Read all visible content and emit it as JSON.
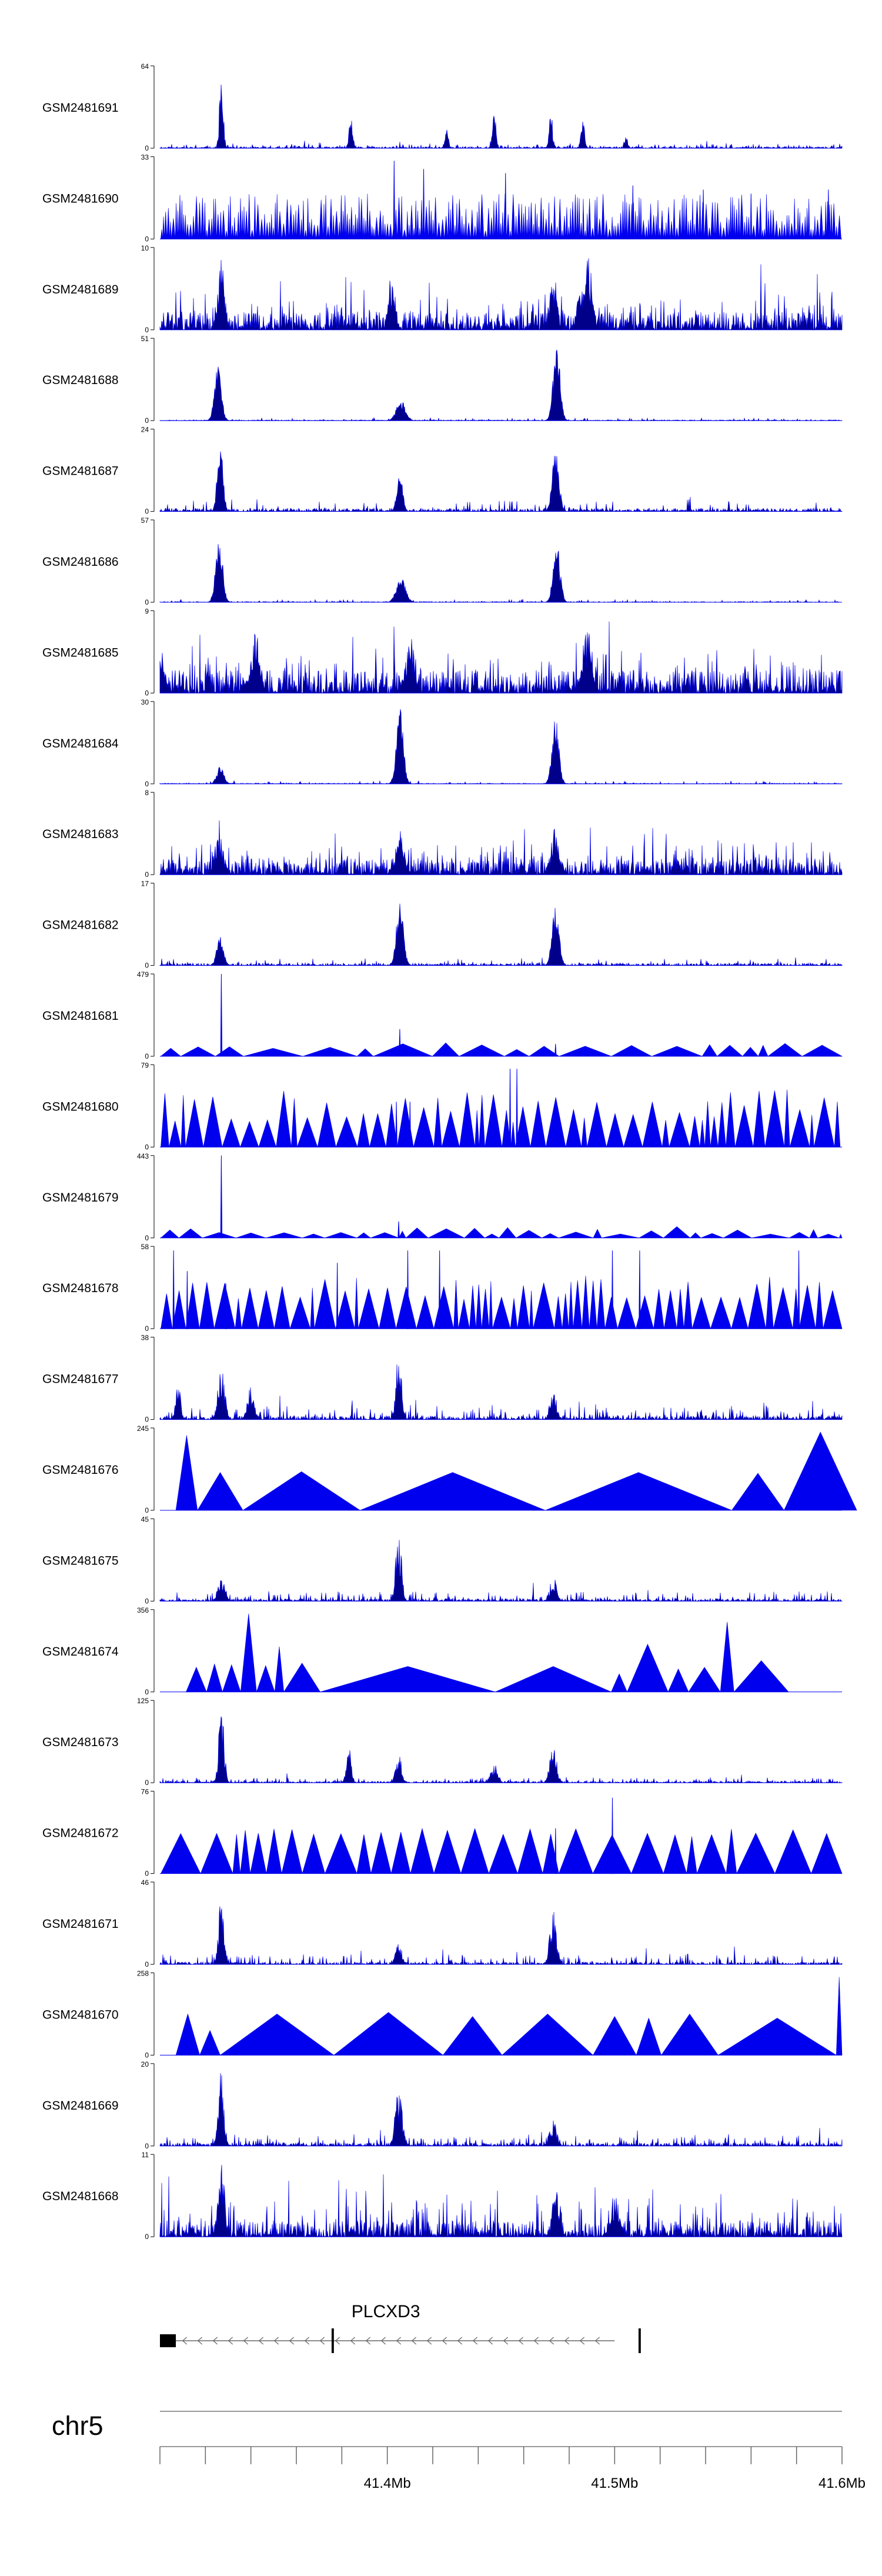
{
  "chart_data": {
    "type": "area",
    "title": "",
    "chromosome": "chr5",
    "xlim_mb": [
      41.3,
      41.6
    ],
    "axis_ticks_mb": [
      41.3,
      41.32,
      41.34,
      41.36,
      41.38,
      41.4,
      41.42,
      41.44,
      41.46,
      41.48,
      41.5,
      41.52,
      41.54,
      41.56,
      41.58,
      41.6
    ],
    "axis_labels": [
      {
        "pos": 41.4,
        "text": "41.4Mb"
      },
      {
        "pos": 41.5,
        "text": "41.5Mb"
      },
      {
        "pos": 41.6,
        "text": "41.6Mb"
      }
    ],
    "colors": {
      "signal": "#0000ee",
      "signal_dark": "#00008b",
      "axis": "#000000",
      "gene": "#000000",
      "gene_line": "#666666",
      "ideogram": "#999999"
    },
    "gene": {
      "name": "PLCXD3",
      "strand": "-",
      "start_mb": 41.3,
      "end_mb": 41.5,
      "exons_mb": [
        [
          41.3,
          41.307
        ],
        [
          41.3755,
          41.3765
        ],
        [
          41.5105,
          41.5115
        ]
      ]
    },
    "tracks": [
      {
        "name": "GSM2481691",
        "ymax": 64,
        "style": "needle",
        "base": 0.02,
        "noise": 0.04,
        "seed": 11,
        "peaks": [
          [
            41.327,
            1.0,
            0.0008
          ],
          [
            41.384,
            0.4,
            0.0008
          ],
          [
            41.426,
            0.25,
            0.0008
          ],
          [
            41.447,
            0.45,
            0.0008
          ],
          [
            41.472,
            0.45,
            0.0008
          ],
          [
            41.486,
            0.35,
            0.0008
          ],
          [
            41.505,
            0.15,
            0.0008
          ]
        ]
      },
      {
        "name": "GSM2481690",
        "ymax": 33,
        "style": "tri",
        "seed": 12,
        "density": 300,
        "hmin": 0.1,
        "hmax": 0.55,
        "spikes": [
          [
            41.403,
            0.95
          ],
          [
            41.416,
            0.85
          ],
          [
            41.452,
            0.8
          ],
          [
            41.508,
            0.65
          ],
          [
            41.539,
            0.6
          ],
          [
            41.56,
            0.55
          ],
          [
            41.594,
            0.6
          ]
        ]
      },
      {
        "name": "GSM2481689",
        "ymax": 10,
        "style": "needle",
        "base": 0.22,
        "noise": 0.3,
        "seed": 13,
        "peaks": [
          [
            41.327,
            0.9,
            0.0015
          ],
          [
            41.402,
            0.6,
            0.0015
          ],
          [
            41.473,
            0.75,
            0.0015
          ],
          [
            41.485,
            0.6,
            0.0015
          ],
          [
            41.488,
            0.95,
            0.002
          ]
        ]
      },
      {
        "name": "GSM2481688",
        "ymax": 51,
        "style": "broad",
        "base": 0.01,
        "noise": 0.03,
        "seed": 14,
        "peaks": [
          [
            41.3255,
            0.7,
            0.0015
          ],
          [
            41.406,
            0.25,
            0.002
          ],
          [
            41.4745,
            0.95,
            0.0015
          ]
        ]
      },
      {
        "name": "GSM2481687",
        "ymax": 24,
        "style": "broad",
        "base": 0.04,
        "noise": 0.14,
        "seed": 15,
        "peaks": [
          [
            41.3265,
            0.95,
            0.0012
          ],
          [
            41.4055,
            0.55,
            0.0012
          ],
          [
            41.474,
            0.75,
            0.0015
          ]
        ]
      },
      {
        "name": "GSM2481686",
        "ymax": 57,
        "style": "broad",
        "base": 0.01,
        "noise": 0.03,
        "seed": 16,
        "peaks": [
          [
            41.326,
            0.85,
            0.0015
          ],
          [
            41.406,
            0.3,
            0.002
          ],
          [
            41.4745,
            0.75,
            0.0015
          ]
        ]
      },
      {
        "name": "GSM2481685",
        "ymax": 9,
        "style": "needle",
        "base": 0.28,
        "noise": 0.35,
        "seed": 17,
        "peaks": [
          [
            41.3,
            0.6,
            0.002
          ],
          [
            41.342,
            0.75,
            0.002
          ],
          [
            41.488,
            0.9,
            0.002
          ],
          [
            41.41,
            0.75,
            0.002
          ]
        ]
      },
      {
        "name": "GSM2481684",
        "ymax": 30,
        "style": "broad",
        "base": 0.01,
        "noise": 0.03,
        "seed": 18,
        "peaks": [
          [
            41.3265,
            0.22,
            0.0015
          ],
          [
            41.4055,
            0.95,
            0.0015
          ],
          [
            41.474,
            0.8,
            0.0015
          ]
        ]
      },
      {
        "name": "GSM2481683",
        "ymax": 8,
        "style": "needle",
        "base": 0.2,
        "noise": 0.28,
        "seed": 19,
        "peaks": [
          [
            41.326,
            0.5,
            0.002
          ],
          [
            41.4055,
            0.55,
            0.002
          ],
          [
            41.474,
            0.6,
            0.002
          ]
        ]
      },
      {
        "name": "GSM2481682",
        "ymax": 17,
        "style": "broad",
        "base": 0.03,
        "noise": 0.08,
        "seed": 20,
        "peaks": [
          [
            41.3265,
            0.35,
            0.0015
          ],
          [
            41.4055,
            0.85,
            0.0015
          ],
          [
            41.474,
            0.75,
            0.0015
          ]
        ]
      },
      {
        "name": "GSM2481681",
        "ymax": 479,
        "style": "tri",
        "seed": 21,
        "density": 18,
        "hmin": 0.08,
        "hmax": 0.17,
        "spikes": [
          [
            41.327,
            1.0
          ],
          [
            41.4055,
            0.33
          ],
          [
            41.474,
            0.15
          ]
        ]
      },
      {
        "name": "GSM2481680",
        "ymax": 79,
        "style": "tri",
        "seed": 22,
        "density": 55,
        "hmin": 0.3,
        "hmax": 0.7,
        "spikes": [
          [
            41.454,
            0.95
          ],
          [
            41.457,
            0.95
          ],
          [
            41.404,
            0.55
          ],
          [
            41.41,
            0.55
          ]
        ]
      },
      {
        "name": "GSM2481679",
        "ymax": 443,
        "style": "tri",
        "seed": 23,
        "density": 30,
        "hmin": 0.04,
        "hmax": 0.14,
        "spikes": [
          [
            41.327,
            1.0
          ],
          [
            41.405,
            0.2
          ]
        ]
      },
      {
        "name": "GSM2481678",
        "ymax": 58,
        "style": "tri",
        "seed": 24,
        "density": 55,
        "hmin": 0.35,
        "hmax": 0.65,
        "spikes": [
          [
            41.306,
            0.95
          ],
          [
            41.312,
            0.7
          ],
          [
            41.329,
            0.55
          ],
          [
            41.378,
            0.8
          ],
          [
            41.409,
            0.95
          ],
          [
            41.423,
            0.95
          ],
          [
            41.499,
            0.95
          ],
          [
            41.511,
            0.95
          ],
          [
            41.581,
            0.95
          ]
        ]
      },
      {
        "name": "GSM2481677",
        "ymax": 38,
        "style": "needle",
        "base": 0.05,
        "noise": 0.14,
        "seed": 25,
        "peaks": [
          [
            41.308,
            0.55,
            0.001
          ],
          [
            41.327,
            0.65,
            0.0015
          ],
          [
            41.34,
            0.4,
            0.0015
          ],
          [
            41.405,
            0.95,
            0.0012
          ],
          [
            41.473,
            0.35,
            0.0015
          ]
        ]
      },
      {
        "name": "GSM2481676",
        "ymax": 245,
        "style": "tri_explicit",
        "seed": 26,
        "tris": [
          [
            41.307,
            41.3165,
            0.91
          ],
          [
            41.3165,
            41.3365,
            0.46
          ],
          [
            41.3365,
            41.388,
            0.47
          ],
          [
            41.388,
            41.4695,
            0.46
          ],
          [
            41.4695,
            41.5515,
            0.46
          ],
          [
            41.5515,
            41.5745,
            0.45
          ],
          [
            41.5745,
            41.6065,
            0.95
          ]
        ]
      },
      {
        "name": "GSM2481675",
        "ymax": 45,
        "style": "needle",
        "base": 0.03,
        "noise": 0.1,
        "seed": 27,
        "peaks": [
          [
            41.327,
            0.3,
            0.0015
          ],
          [
            41.405,
            0.95,
            0.0012
          ],
          [
            41.473,
            0.3,
            0.0015
          ]
        ]
      },
      {
        "name": "GSM2481674",
        "ymax": 356,
        "style": "tri_explicit",
        "seed": 28,
        "tris": [
          [
            41.3115,
            41.3205,
            0.3
          ],
          [
            41.3205,
            41.3275,
            0.34
          ],
          [
            41.3275,
            41.3355,
            0.33
          ],
          [
            41.3355,
            41.3425,
            0.95
          ],
          [
            41.3425,
            41.3505,
            0.32
          ],
          [
            41.3505,
            41.3545,
            0.55
          ],
          [
            41.3545,
            41.3705,
            0.35
          ],
          [
            41.3705,
            41.4475,
            0.31
          ],
          [
            41.4475,
            41.4985,
            0.31
          ],
          [
            41.4985,
            41.5055,
            0.22
          ],
          [
            41.5055,
            41.5235,
            0.58
          ],
          [
            41.5235,
            41.5325,
            0.28
          ],
          [
            41.5325,
            41.5465,
            0.3
          ],
          [
            41.5465,
            41.5525,
            0.85
          ],
          [
            41.5525,
            41.5765,
            0.38
          ]
        ]
      },
      {
        "name": "GSM2481673",
        "ymax": 125,
        "style": "needle",
        "base": 0.02,
        "noise": 0.05,
        "seed": 29,
        "peaks": [
          [
            41.327,
            0.95,
            0.0012
          ],
          [
            41.383,
            0.5,
            0.001
          ],
          [
            41.405,
            0.4,
            0.0012
          ],
          [
            41.447,
            0.25,
            0.0015
          ],
          [
            41.473,
            0.45,
            0.0015
          ]
        ]
      },
      {
        "name": "GSM2481672",
        "ymax": 76,
        "style": "tri",
        "seed": 30,
        "density": 30,
        "hmin": 0.45,
        "hmax": 0.55,
        "spikes": [
          [
            41.499,
            0.92
          ],
          [
            41.474,
            0.55
          ]
        ]
      },
      {
        "name": "GSM2481671",
        "ymax": 46,
        "style": "needle",
        "base": 0.03,
        "noise": 0.1,
        "seed": 31,
        "peaks": [
          [
            41.327,
            0.95,
            0.0012
          ],
          [
            41.405,
            0.25,
            0.0015
          ],
          [
            41.473,
            0.65,
            0.0015
          ]
        ]
      },
      {
        "name": "GSM2481670",
        "ymax": 258,
        "style": "tri_explicit",
        "seed": 32,
        "tris": [
          [
            41.307,
            41.3175,
            0.5
          ],
          [
            41.3175,
            41.3265,
            0.3
          ],
          [
            41.3265,
            41.3765,
            0.5
          ],
          [
            41.3765,
            41.4245,
            0.52
          ],
          [
            41.4245,
            41.4505,
            0.47
          ],
          [
            41.4505,
            41.4905,
            0.5
          ],
          [
            41.4905,
            41.5095,
            0.47
          ],
          [
            41.5095,
            41.5205,
            0.45
          ],
          [
            41.5205,
            41.5455,
            0.5
          ],
          [
            41.5455,
            41.5975,
            0.45
          ],
          [
            41.5975,
            41.6,
            0.95
          ]
        ]
      },
      {
        "name": "GSM2481669",
        "ymax": 20,
        "style": "needle",
        "base": 0.04,
        "noise": 0.1,
        "seed": 33,
        "peaks": [
          [
            41.327,
            0.95,
            0.0012
          ],
          [
            41.405,
            0.75,
            0.0015
          ],
          [
            41.473,
            0.35,
            0.0015
          ]
        ]
      },
      {
        "name": "GSM2481668",
        "ymax": 11,
        "style": "needle",
        "base": 0.2,
        "noise": 0.34,
        "seed": 34,
        "peaks": [
          [
            41.327,
            0.9,
            0.0015
          ],
          [
            41.474,
            0.6,
            0.0015
          ],
          [
            41.5,
            0.55,
            0.002
          ]
        ]
      }
    ]
  }
}
